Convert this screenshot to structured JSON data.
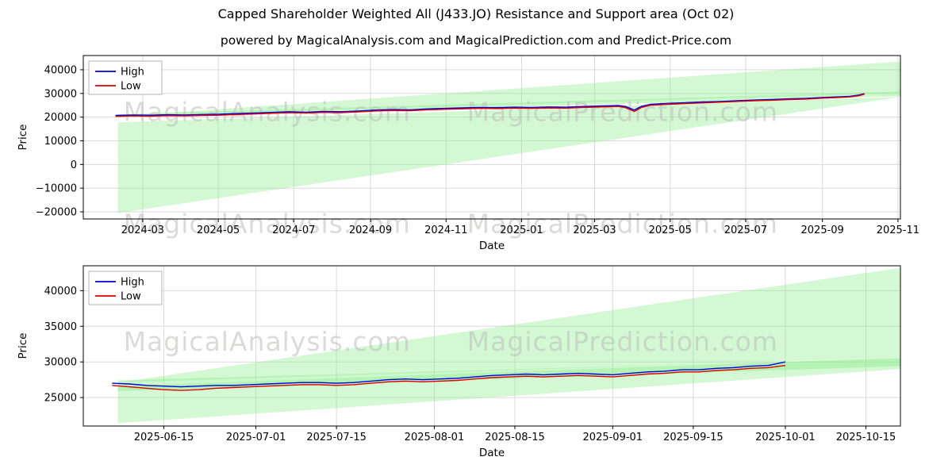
{
  "page": {
    "title": "Capped Shareholder Weighted All (J433.JO) Resistance and Support area (Oct 02)",
    "subtitle": "powered by MagicalAnalysis.com and MagicalPrediction.com and Predict-Price.com"
  },
  "watermarks": {
    "left": "MagicalAnalysis.com",
    "right": "MagicalPrediction.com"
  },
  "colors": {
    "high": "#0000dc",
    "low": "#dc0000",
    "band": "#90ee90",
    "grid": "#d9d9d9"
  },
  "chart_data": [
    {
      "name": "overview",
      "type": "line",
      "xlabel": "Date",
      "ylabel": "Price",
      "x_unit": "days since 2024-01-01",
      "xlim": [
        12,
        672
      ],
      "ylim": [
        -23000,
        46000
      ],
      "grid": true,
      "legend": {
        "position": "upper-left",
        "items": [
          {
            "label": "High",
            "color": "#0000dc"
          },
          {
            "label": "Low",
            "color": "#dc0000"
          }
        ]
      },
      "xticks": [
        {
          "v": 60,
          "label": "2024-03"
        },
        {
          "v": 121,
          "label": "2024-05"
        },
        {
          "v": 182,
          "label": "2024-07"
        },
        {
          "v": 244,
          "label": "2024-09"
        },
        {
          "v": 305,
          "label": "2024-11"
        },
        {
          "v": 366,
          "label": "2025-01"
        },
        {
          "v": 425,
          "label": "2025-03"
        },
        {
          "v": 486,
          "label": "2025-05"
        },
        {
          "v": 547,
          "label": "2025-07"
        },
        {
          "v": 609,
          "label": "2025-09"
        },
        {
          "v": 670,
          "label": "2025-11"
        }
      ],
      "yticks": [
        {
          "v": 40000,
          "label": "40000"
        },
        {
          "v": 30000,
          "label": "30000"
        },
        {
          "v": 20000,
          "label": "20000"
        },
        {
          "v": 10000,
          "label": "10000"
        },
        {
          "v": 0,
          "label": "0"
        },
        {
          "v": -10000,
          "label": "−10000"
        },
        {
          "v": -20000,
          "label": "−20000"
        }
      ],
      "bands": [
        {
          "label": "resistance-fan",
          "points": [
            [
              40,
              20300
            ],
            [
              672,
              43500
            ],
            [
              672,
              30200
            ]
          ],
          "fill": "#90ee90",
          "opacity": 0.4
        },
        {
          "label": "support-fan",
          "points": [
            [
              40,
              17800
            ],
            [
              672,
              28500
            ],
            [
              40,
              -20500
            ]
          ],
          "fill": "#90ee90",
          "opacity": 0.4
        },
        {
          "label": "price-channel",
          "points": [
            [
              40,
              21200
            ],
            [
              672,
              30800
            ],
            [
              672,
              28800
            ],
            [
              40,
              19800
            ]
          ],
          "fill": "#90ee90",
          "opacity": 0.45
        }
      ],
      "series": [
        {
          "name": "High",
          "color": "#0000dc",
          "x": [
            38,
            52,
            66,
            80,
            94,
            108,
            122,
            136,
            150,
            164,
            178,
            192,
            206,
            220,
            234,
            248,
            262,
            276,
            290,
            304,
            318,
            332,
            346,
            360,
            374,
            388,
            402,
            416,
            430,
            444,
            450,
            457,
            463,
            470,
            484,
            498,
            512,
            526,
            540,
            554,
            568,
            582,
            596,
            610,
            624,
            631,
            638,
            643
          ],
          "y": [
            20700,
            20900,
            20800,
            21000,
            20900,
            21100,
            21200,
            21500,
            21700,
            22000,
            22300,
            22100,
            22400,
            22300,
            22600,
            23000,
            23200,
            23100,
            23500,
            23700,
            23900,
            24100,
            24000,
            24200,
            24100,
            24300,
            24200,
            24500,
            24700,
            24900,
            24500,
            23000,
            24600,
            25400,
            25800,
            26100,
            26400,
            26600,
            26900,
            27200,
            27400,
            27700,
            27900,
            28300,
            28600,
            28800,
            29300,
            29900
          ]
        },
        {
          "name": "Low",
          "color": "#dc0000",
          "x": [
            38,
            52,
            66,
            80,
            94,
            108,
            122,
            136,
            150,
            164,
            178,
            192,
            206,
            220,
            234,
            248,
            262,
            276,
            290,
            304,
            318,
            332,
            346,
            360,
            374,
            388,
            402,
            416,
            430,
            444,
            450,
            457,
            463,
            470,
            484,
            498,
            512,
            526,
            540,
            554,
            568,
            582,
            596,
            610,
            624,
            631,
            638,
            643
          ],
          "y": [
            20300,
            20500,
            20400,
            20600,
            20500,
            20700,
            20800,
            21100,
            21300,
            21600,
            21900,
            21700,
            22000,
            21900,
            22200,
            22600,
            22800,
            22700,
            23100,
            23300,
            23500,
            23700,
            23600,
            23800,
            23700,
            23900,
            23800,
            24100,
            24300,
            24500,
            24000,
            22400,
            24100,
            25000,
            25400,
            25700,
            26000,
            26300,
            26600,
            26900,
            27100,
            27400,
            27600,
            28000,
            28300,
            28500,
            29000,
            29700
          ]
        }
      ]
    },
    {
      "name": "detail",
      "type": "line",
      "xlabel": "Date",
      "ylabel": "Price",
      "x_unit": "days since 2024-01-01",
      "xlim": [
        517,
        659
      ],
      "ylim": [
        21000,
        43500
      ],
      "grid": true,
      "legend": {
        "position": "upper-left",
        "items": [
          {
            "label": "High",
            "color": "#0000dc"
          },
          {
            "label": "Low",
            "color": "#dc0000"
          }
        ]
      },
      "xticks": [
        {
          "v": 531,
          "label": "2025-06-15"
        },
        {
          "v": 547,
          "label": "2025-07-01"
        },
        {
          "v": 561,
          "label": "2025-07-15"
        },
        {
          "v": 578,
          "label": "2025-08-01"
        },
        {
          "v": 592,
          "label": "2025-08-15"
        },
        {
          "v": 609,
          "label": "2025-09-01"
        },
        {
          "v": 623,
          "label": "2025-09-15"
        },
        {
          "v": 639,
          "label": "2025-10-01"
        },
        {
          "v": 653,
          "label": "2025-10-15"
        }
      ],
      "yticks": [
        {
          "v": 25000,
          "label": "25000"
        },
        {
          "v": 30000,
          "label": "30000"
        },
        {
          "v": 35000,
          "label": "35000"
        },
        {
          "v": 40000,
          "label": "40000"
        }
      ],
      "bands": [
        {
          "label": "resistance-fan",
          "points": [
            [
              523,
              27100
            ],
            [
              659,
              43200
            ],
            [
              659,
              30600
            ]
          ],
          "fill": "#90ee90",
          "opacity": 0.4
        },
        {
          "label": "support-band",
          "points": [
            [
              523,
              26600
            ],
            [
              659,
              30600
            ],
            [
              659,
              29000
            ],
            [
              523,
              21400
            ]
          ],
          "fill": "#90ee90",
          "opacity": 0.4
        },
        {
          "label": "price-channel",
          "points": [
            [
              523,
              27400
            ],
            [
              659,
              30500
            ],
            [
              659,
              29400
            ],
            [
              523,
              25900
            ]
          ],
          "fill": "#90ee90",
          "opacity": 0.45
        }
      ],
      "series": [
        {
          "name": "High",
          "color": "#0000dc",
          "x": [
            522,
            525,
            528,
            531,
            534,
            537,
            540,
            543,
            546,
            549,
            552,
            555,
            558,
            561,
            564,
            567,
            570,
            573,
            576,
            579,
            582,
            585,
            588,
            591,
            594,
            597,
            600,
            603,
            606,
            609,
            612,
            615,
            618,
            621,
            624,
            627,
            630,
            633,
            636,
            639
          ],
          "y": [
            27000,
            26900,
            26700,
            26600,
            26500,
            26600,
            26700,
            26700,
            26800,
            26900,
            27000,
            27100,
            27100,
            27000,
            27100,
            27300,
            27500,
            27600,
            27500,
            27600,
            27700,
            27900,
            28100,
            28200,
            28300,
            28200,
            28300,
            28400,
            28300,
            28200,
            28400,
            28600,
            28700,
            28900,
            28900,
            29100,
            29200,
            29400,
            29500,
            30000
          ]
        },
        {
          "name": "Low",
          "color": "#dc0000",
          "x": [
            522,
            525,
            528,
            531,
            534,
            537,
            540,
            543,
            546,
            549,
            552,
            555,
            558,
            561,
            564,
            567,
            570,
            573,
            576,
            579,
            582,
            585,
            588,
            591,
            594,
            597,
            600,
            603,
            606,
            609,
            612,
            615,
            618,
            621,
            624,
            627,
            630,
            633,
            636,
            639
          ],
          "y": [
            26700,
            26500,
            26300,
            26100,
            26000,
            26100,
            26300,
            26400,
            26500,
            26600,
            26700,
            26800,
            26800,
            26700,
            26800,
            27000,
            27200,
            27300,
            27200,
            27300,
            27400,
            27600,
            27800,
            27900,
            28000,
            27900,
            28000,
            28100,
            28000,
            27900,
            28100,
            28300,
            28400,
            28600,
            28600,
            28800,
            28900,
            29100,
            29200,
            29500
          ]
        }
      ]
    }
  ]
}
